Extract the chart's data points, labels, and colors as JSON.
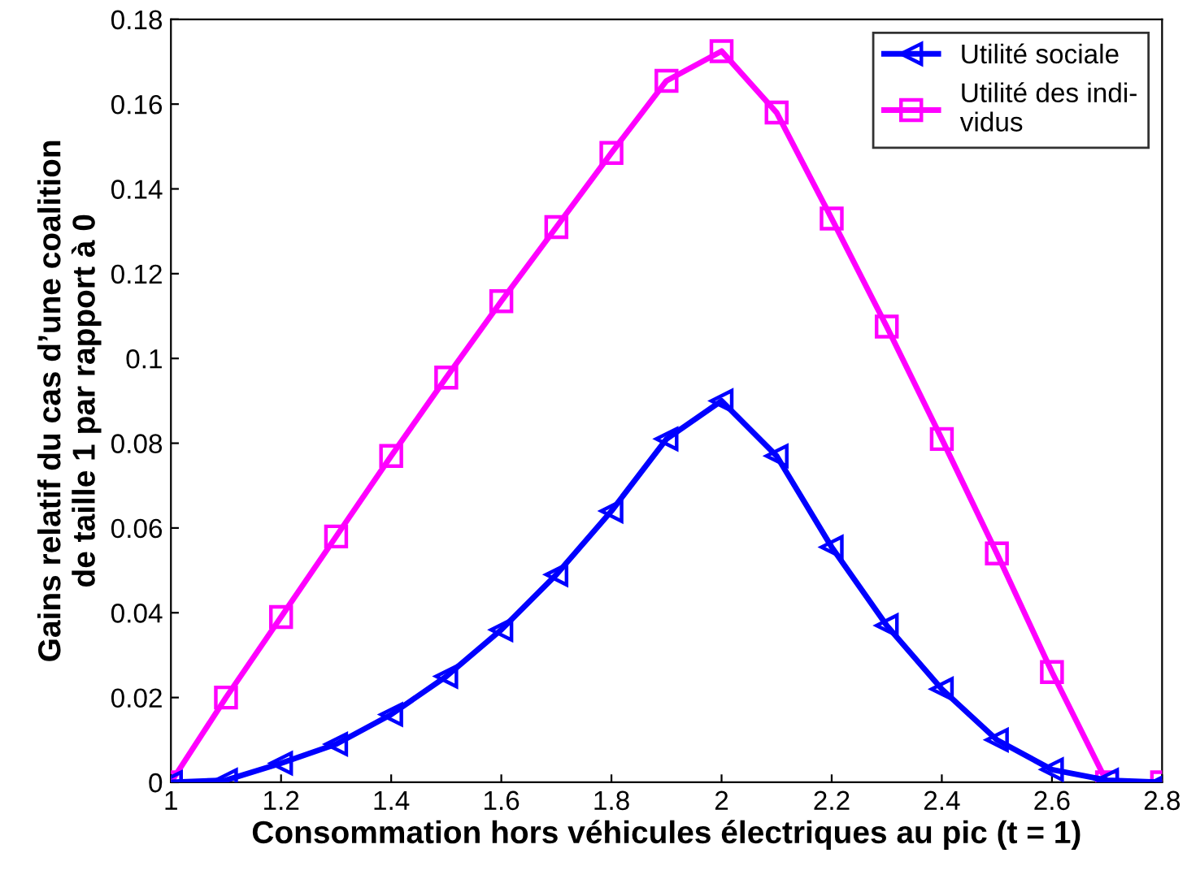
{
  "chart_data": {
    "type": "line",
    "xlabel": "Consommation hors véhicules électriques au pic (t = 1)",
    "ylabel": "Gains relatif du cas d’une coalition\nde taille 1 par rapport à 0",
    "x": [
      1,
      1.1,
      1.2,
      1.3,
      1.4,
      1.5,
      1.6,
      1.7,
      1.8,
      1.9,
      2,
      2.1,
      2.2,
      2.3,
      2.4,
      2.5,
      2.6,
      2.7,
      2.8
    ],
    "series": [
      {
        "name": "Utilité sociale",
        "color": "#0000ff",
        "marker": "triangle",
        "values": [
          0,
          0.0005,
          0.0045,
          0.009,
          0.016,
          0.025,
          0.036,
          0.049,
          0.064,
          0.081,
          0.09,
          0.077,
          0.0555,
          0.037,
          0.022,
          0.01,
          0.003,
          0.0005,
          0
        ]
      },
      {
        "name": "Utilité des indi-\nvidus",
        "color": "#ff00ff",
        "marker": "square",
        "values": [
          0,
          0.02,
          0.039,
          0.058,
          0.077,
          0.0955,
          0.1135,
          0.131,
          0.1485,
          0.1655,
          0.1725,
          0.158,
          0.133,
          0.1075,
          0.081,
          0.054,
          0.026,
          0,
          0
        ]
      }
    ],
    "xlim": [
      1,
      2.8
    ],
    "xticks": [
      1,
      1.2,
      1.4,
      1.6,
      1.8,
      2,
      2.2,
      2.4,
      2.6,
      2.8
    ],
    "ylim": [
      0,
      0.18
    ],
    "yticks": [
      0,
      0.02,
      0.04,
      0.06,
      0.08,
      0.1,
      0.12,
      0.14,
      0.16,
      0.18
    ],
    "grid": false,
    "legend": "top right",
    "line_style": "solid"
  }
}
